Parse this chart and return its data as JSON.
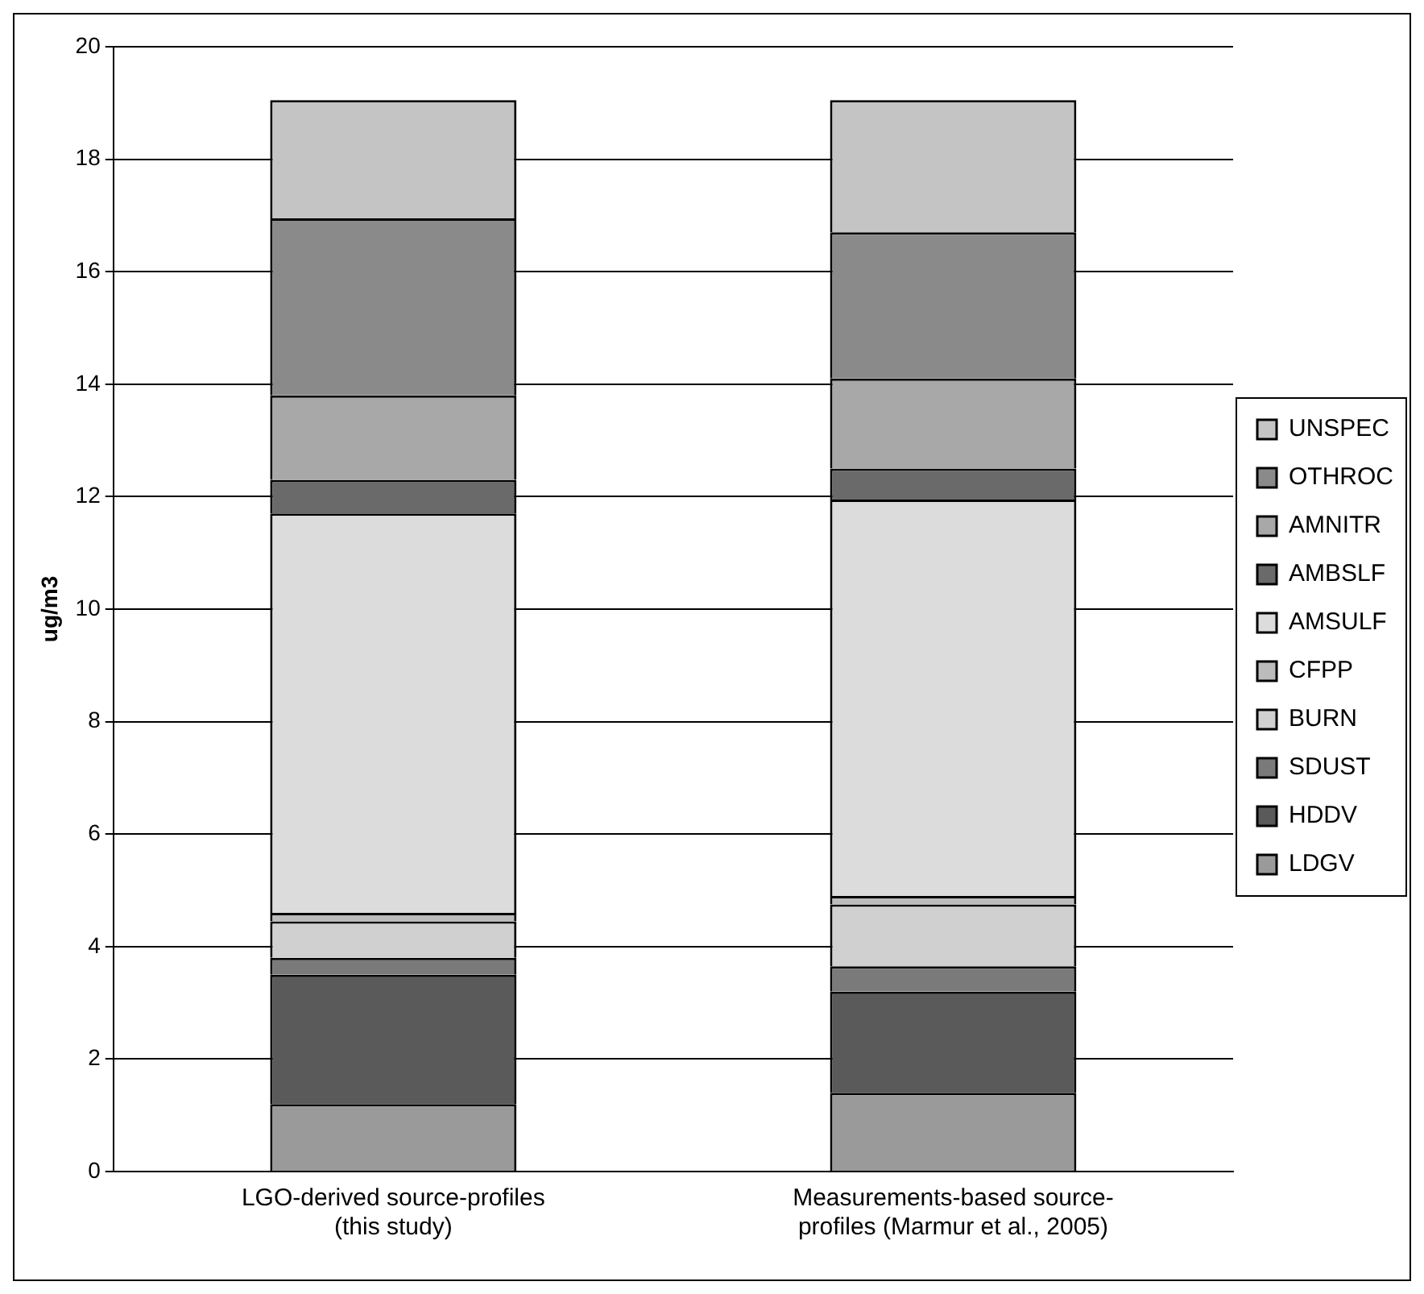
{
  "chart_data": {
    "type": "bar",
    "stacked": true,
    "ylabel": "ug/m3",
    "categories": [
      "LGO-derived source-profiles (this study)",
      "Measurements-based source-profiles (Marmur et al., 2005)"
    ],
    "series": [
      {
        "name": "LDGV",
        "color": "#9a9a9a",
        "values": [
          1.2,
          1.4
        ]
      },
      {
        "name": "HDDV",
        "color": "#5a5a5a",
        "values": [
          2.3,
          1.8
        ]
      },
      {
        "name": "SDUST",
        "color": "#7a7a7a",
        "values": [
          0.3,
          0.45
        ]
      },
      {
        "name": "BURN",
        "color": "#d0d0d0",
        "values": [
          0.65,
          1.1
        ]
      },
      {
        "name": "CFPP",
        "color": "#bcbcbc",
        "values": [
          0.15,
          0.15
        ]
      },
      {
        "name": "AMSULF",
        "color": "#dcdcdc",
        "values": [
          7.1,
          7.05
        ]
      },
      {
        "name": "AMBSLF",
        "color": "#6a6a6a",
        "values": [
          0.6,
          0.55
        ]
      },
      {
        "name": "AMNITR",
        "color": "#a8a8a8",
        "values": [
          1.5,
          1.6
        ]
      },
      {
        "name": "OTHROC",
        "color": "#8a8a8a",
        "values": [
          3.15,
          2.6
        ]
      },
      {
        "name": "UNSPEC",
        "color": "#c4c4c4",
        "values": [
          2.1,
          2.35
        ]
      }
    ],
    "ylim": [
      0,
      20
    ],
    "yticks": [
      0,
      2,
      4,
      6,
      8,
      10,
      12,
      14,
      16,
      18,
      20
    ],
    "grid": "y",
    "legend": "right"
  }
}
